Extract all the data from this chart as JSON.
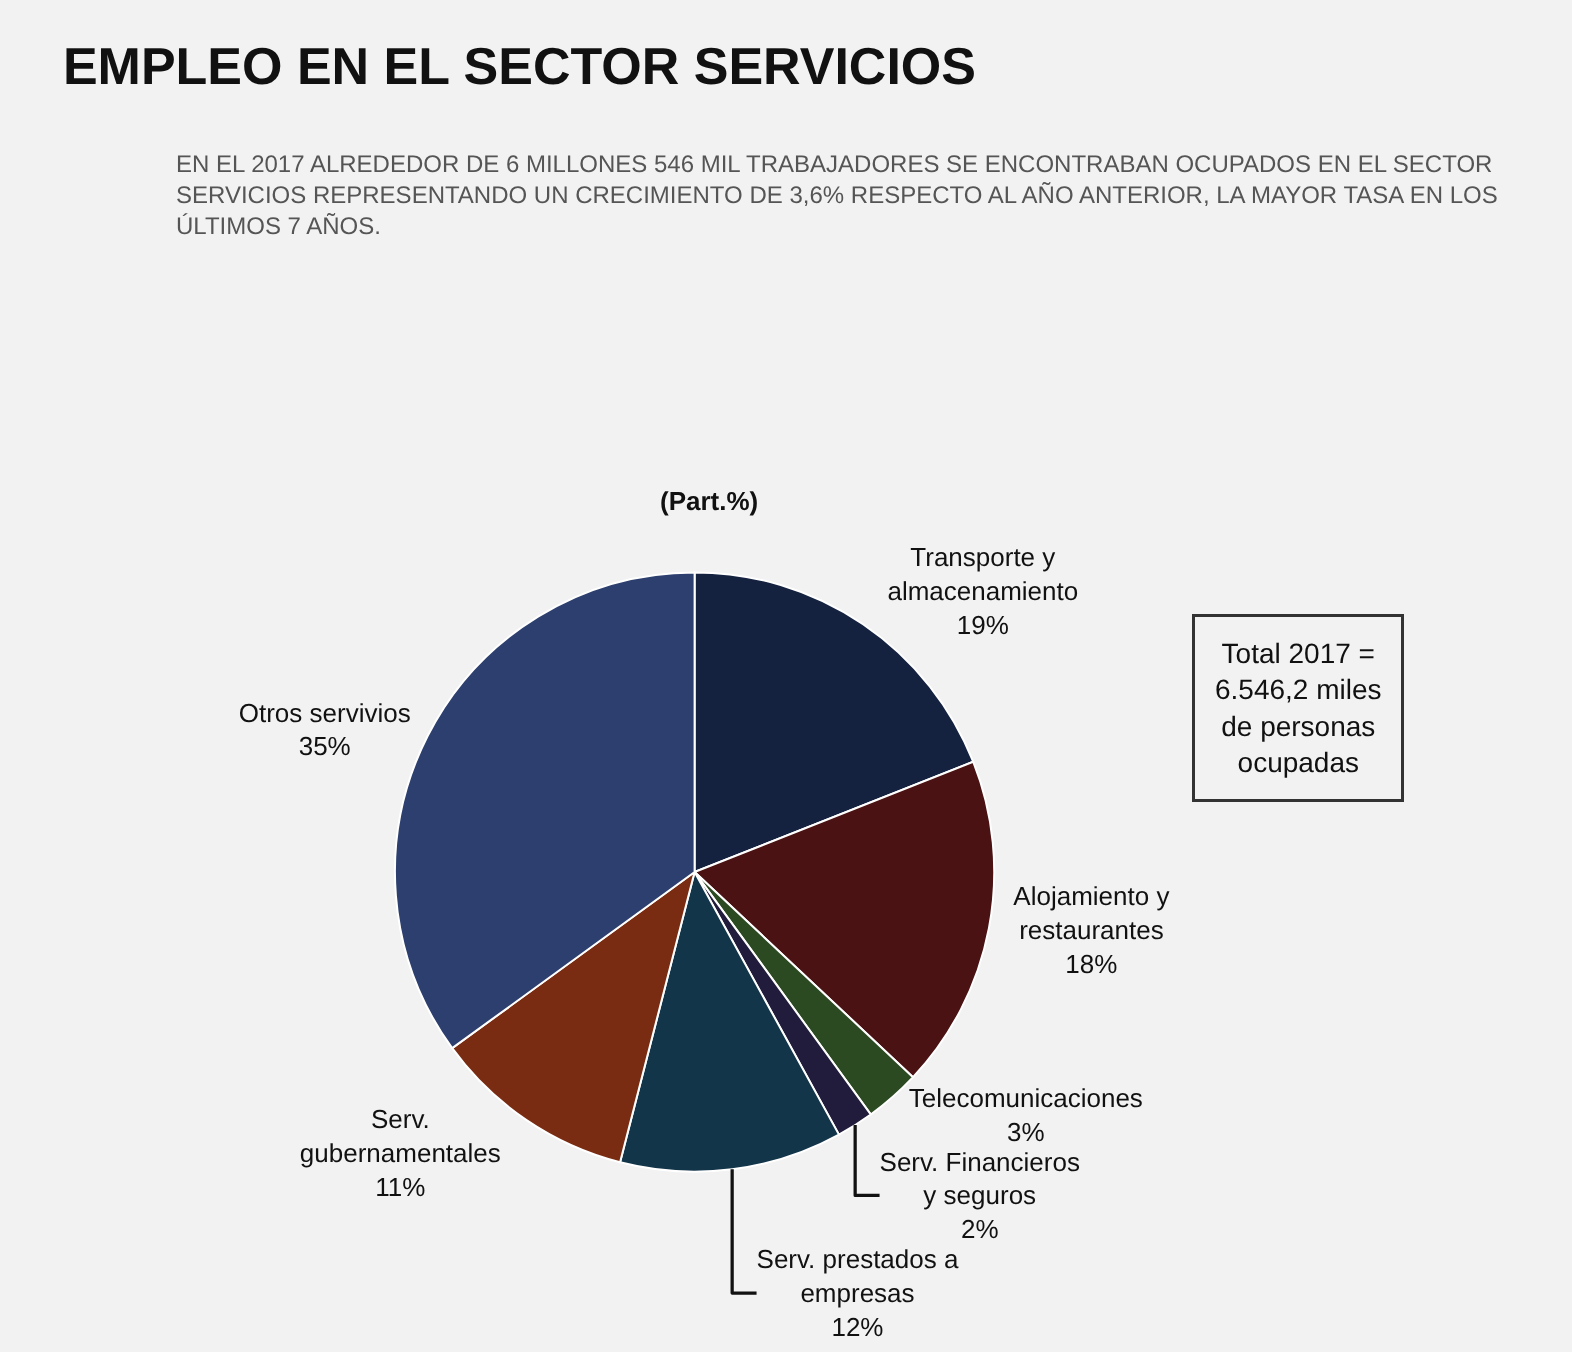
{
  "chart_data": {
    "type": "pie",
    "title": "EMPLEO EN EL SECTOR SERVICIOS",
    "subtitle": "EN EL 2017 ALREDEDOR DE 6 MILLONES 546 MIL TRABAJADORES SE ENCONTRABAN OCUPADOS EN EL SECTOR\nSERVICIOS REPRESENTANDO UN CRECIMIENTO DE 3,6% RESPECTO AL AÑO ANTERIOR, LA MAYOR TASA EN LOS\nÚLTIMOS 7 AÑOS.",
    "categories": [
      "Transporte y almacenamiento",
      "Alojamiento y restaurantes",
      "Telecomunicaciones",
      "Serv. Financieros y seguros",
      "Serv. prestados a empresas",
      "Serv. gubernamentales",
      "Otros servivios"
    ],
    "values": [
      19,
      18,
      3,
      2,
      12,
      11,
      35
    ],
    "value_labels": [
      "19%",
      "18%",
      "3%",
      "2%",
      "12%",
      "11%",
      "35%"
    ],
    "colors": [
      "#14213f",
      "#4a1212",
      "#2b4a22",
      "#211c3c",
      "#13354a",
      "#7a2c12",
      "#2c3f6e"
    ],
    "annotations": [
      "(Part.%)",
      "Total 2017 =\n6.546,2 miles\nde personas\nocupadas"
    ],
    "legend": false
  }
}
